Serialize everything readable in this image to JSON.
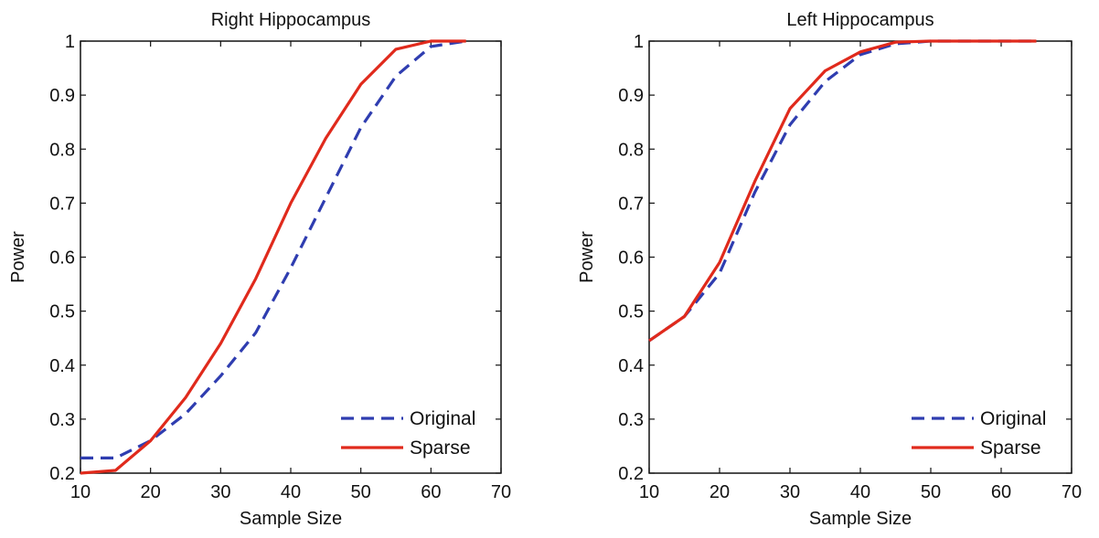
{
  "chart_data": [
    {
      "type": "line",
      "title": "Right Hippocampus",
      "xlabel": "Sample Size",
      "ylabel": "Power",
      "xlim": [
        10,
        70
      ],
      "ylim": [
        0.2,
        1
      ],
      "xticks": [
        "10",
        "20",
        "30",
        "40",
        "50",
        "60",
        "70"
      ],
      "yticks": [
        "0.2",
        "0.3",
        "0.4",
        "0.5",
        "0.6",
        "0.7",
        "0.8",
        "0.9",
        "1"
      ],
      "grid": false,
      "legend_position": "bottom-right",
      "series": [
        {
          "name": "Original",
          "style": "dashed",
          "color": "#2f3db0",
          "x": [
            10,
            15,
            20,
            25,
            30,
            35,
            40,
            45,
            50,
            55,
            60,
            65
          ],
          "y": [
            0.228,
            0.228,
            0.26,
            0.31,
            0.38,
            0.46,
            0.58,
            0.71,
            0.84,
            0.935,
            0.99,
            1.0
          ]
        },
        {
          "name": "Sparse",
          "style": "solid",
          "color": "#e02a1c",
          "x": [
            10,
            15,
            20,
            25,
            30,
            35,
            40,
            45,
            50,
            55,
            60,
            65
          ],
          "y": [
            0.2,
            0.205,
            0.26,
            0.34,
            0.44,
            0.56,
            0.7,
            0.82,
            0.92,
            0.985,
            1.0,
            1.0
          ]
        }
      ]
    },
    {
      "type": "line",
      "title": "Left Hippocampus",
      "xlabel": "Sample Size",
      "ylabel": "Power",
      "xlim": [
        10,
        70
      ],
      "ylim": [
        0.2,
        1
      ],
      "xticks": [
        "10",
        "20",
        "30",
        "40",
        "50",
        "60",
        "70"
      ],
      "yticks": [
        "0.2",
        "0.3",
        "0.4",
        "0.5",
        "0.6",
        "0.7",
        "0.8",
        "0.9",
        "1"
      ],
      "grid": false,
      "legend_position": "bottom-right",
      "series": [
        {
          "name": "Original",
          "style": "dashed",
          "color": "#2f3db0",
          "x": [
            10,
            15,
            20,
            25,
            30,
            35,
            40,
            45,
            50,
            55,
            60,
            65
          ],
          "y": [
            0.445,
            0.49,
            0.57,
            0.72,
            0.845,
            0.925,
            0.975,
            0.995,
            1.0,
            1.0,
            1.0,
            1.0
          ]
        },
        {
          "name": "Sparse",
          "style": "solid",
          "color": "#e02a1c",
          "x": [
            10,
            15,
            20,
            25,
            30,
            35,
            40,
            45,
            50,
            55,
            60,
            65
          ],
          "y": [
            0.445,
            0.49,
            0.59,
            0.74,
            0.875,
            0.945,
            0.98,
            0.998,
            1.0,
            1.0,
            1.0,
            1.0
          ]
        }
      ]
    }
  ]
}
